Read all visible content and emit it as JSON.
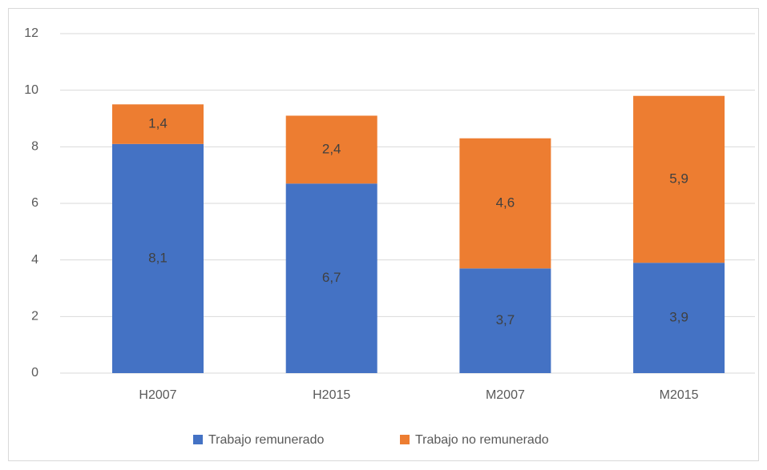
{
  "chart_data": {
    "type": "stacked_bar",
    "categories": [
      "H2007",
      "H2015",
      "M2007",
      "M2015"
    ],
    "series": [
      {
        "name": "Trabajo remunerado",
        "color": "#4472c4",
        "values": [
          8.1,
          6.7,
          3.7,
          3.9
        ],
        "value_labels": [
          "8,1",
          "6,7",
          "3,7",
          "3,9"
        ]
      },
      {
        "name": "Trabajo no remunerado",
        "color": "#ed7d31",
        "values": [
          1.4,
          2.4,
          4.6,
          5.9
        ],
        "value_labels": [
          "1,4",
          "2,4",
          "4,6",
          "5,9"
        ]
      }
    ],
    "ylim": [
      0,
      12
    ],
    "yticks": [
      0,
      2,
      4,
      6,
      8,
      10,
      12
    ],
    "grid": true,
    "legend": "bottom"
  }
}
